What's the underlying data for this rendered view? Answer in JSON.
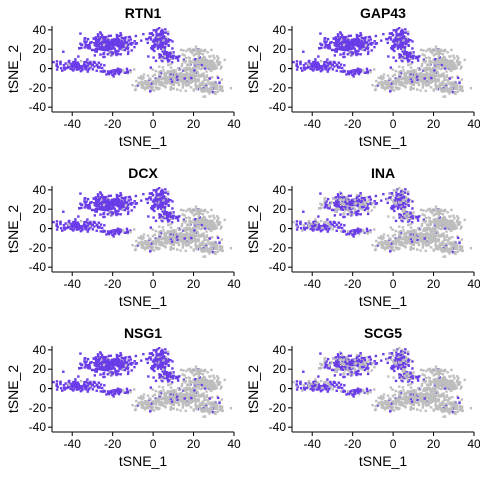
{
  "chart_data": [
    {
      "type": "scatter",
      "title": "RTN1",
      "xlabel": "tSNE_1",
      "ylabel": "tSNE_2",
      "xlim": [
        -50,
        40
      ],
      "ylim": [
        -45,
        44
      ],
      "xticks": [
        -40,
        -20,
        0,
        20,
        40
      ],
      "yticks": [
        -40,
        -20,
        0,
        20,
        40
      ],
      "mode": "high",
      "low_color": "#bebebe",
      "high_color": "#6a3ce8"
    },
    {
      "type": "scatter",
      "title": "GAP43",
      "xlabel": "tSNE_1",
      "ylabel": "tSNE_2",
      "xlim": [
        -50,
        40
      ],
      "ylim": [
        -45,
        44
      ],
      "xticks": [
        -40,
        -20,
        0,
        20,
        40
      ],
      "yticks": [
        -40,
        -20,
        0,
        20,
        40
      ],
      "mode": "high",
      "low_color": "#bebebe",
      "high_color": "#6a3ce8"
    },
    {
      "type": "scatter",
      "title": "DCX",
      "xlabel": "tSNE_1",
      "ylabel": "tSNE_2",
      "xlim": [
        -50,
        40
      ],
      "ylim": [
        -45,
        44
      ],
      "xticks": [
        -40,
        -20,
        0,
        20,
        40
      ],
      "yticks": [
        -40,
        -20,
        0,
        20,
        40
      ],
      "mode": "high",
      "low_color": "#bebebe",
      "high_color": "#6a3ce8"
    },
    {
      "type": "scatter",
      "title": "INA",
      "xlabel": "tSNE_1",
      "ylabel": "tSNE_2",
      "xlim": [
        -50,
        40
      ],
      "ylim": [
        -45,
        44
      ],
      "xticks": [
        -40,
        -20,
        0,
        20,
        40
      ],
      "yticks": [
        -40,
        -20,
        0,
        20,
        40
      ],
      "mode": "mid",
      "low_color": "#bebebe",
      "high_color": "#6a3ce8"
    },
    {
      "type": "scatter",
      "title": "NSG1",
      "xlabel": "tSNE_1",
      "ylabel": "tSNE_2",
      "xlim": [
        -50,
        40
      ],
      "ylim": [
        -45,
        44
      ],
      "xticks": [
        -40,
        -20,
        0,
        20,
        40
      ],
      "yticks": [
        -40,
        -20,
        0,
        20,
        40
      ],
      "mode": "high",
      "low_color": "#bebebe",
      "high_color": "#6a3ce8"
    },
    {
      "type": "scatter",
      "title": "SCG5",
      "xlabel": "tSNE_1",
      "ylabel": "tSNE_2",
      "xlim": [
        -50,
        40
      ],
      "ylim": [
        -45,
        44
      ],
      "xticks": [
        -40,
        -20,
        0,
        20,
        40
      ],
      "yticks": [
        -40,
        -20,
        0,
        20,
        40
      ],
      "mode": "mid",
      "low_color": "#bebebe",
      "high_color": "#6a3ce8"
    }
  ],
  "clusters": [
    {
      "cx": -22,
      "cy": 25,
      "rx": 12,
      "ry": 9,
      "n": 300,
      "expr": "high"
    },
    {
      "cx": 3,
      "cy": 30,
      "rx": 5,
      "ry": 10,
      "n": 170,
      "expr": "high"
    },
    {
      "cx": -37,
      "cy": 3,
      "rx": 10,
      "ry": 5,
      "n": 140,
      "expr": "high"
    },
    {
      "cx": -18,
      "cy": -3,
      "rx": 6,
      "ry": 3,
      "n": 60,
      "expr": "high"
    },
    {
      "cx": 8,
      "cy": 12,
      "rx": 5,
      "ry": 5,
      "n": 60,
      "expr": "high"
    },
    {
      "cx": 12,
      "cy": -10,
      "rx": 14,
      "ry": 9,
      "n": 330,
      "expr": "low"
    },
    {
      "cx": 25,
      "cy": 5,
      "rx": 9,
      "ry": 8,
      "n": 180,
      "expr": "low"
    },
    {
      "cx": 28,
      "cy": -20,
      "rx": 7,
      "ry": 6,
      "n": 110,
      "expr": "low"
    },
    {
      "cx": -2,
      "cy": -18,
      "rx": 6,
      "ry": 4,
      "n": 70,
      "expr": "low"
    },
    {
      "cx": 22,
      "cy": 18,
      "rx": 5,
      "ry": 3,
      "n": 40,
      "expr": "low"
    }
  ]
}
